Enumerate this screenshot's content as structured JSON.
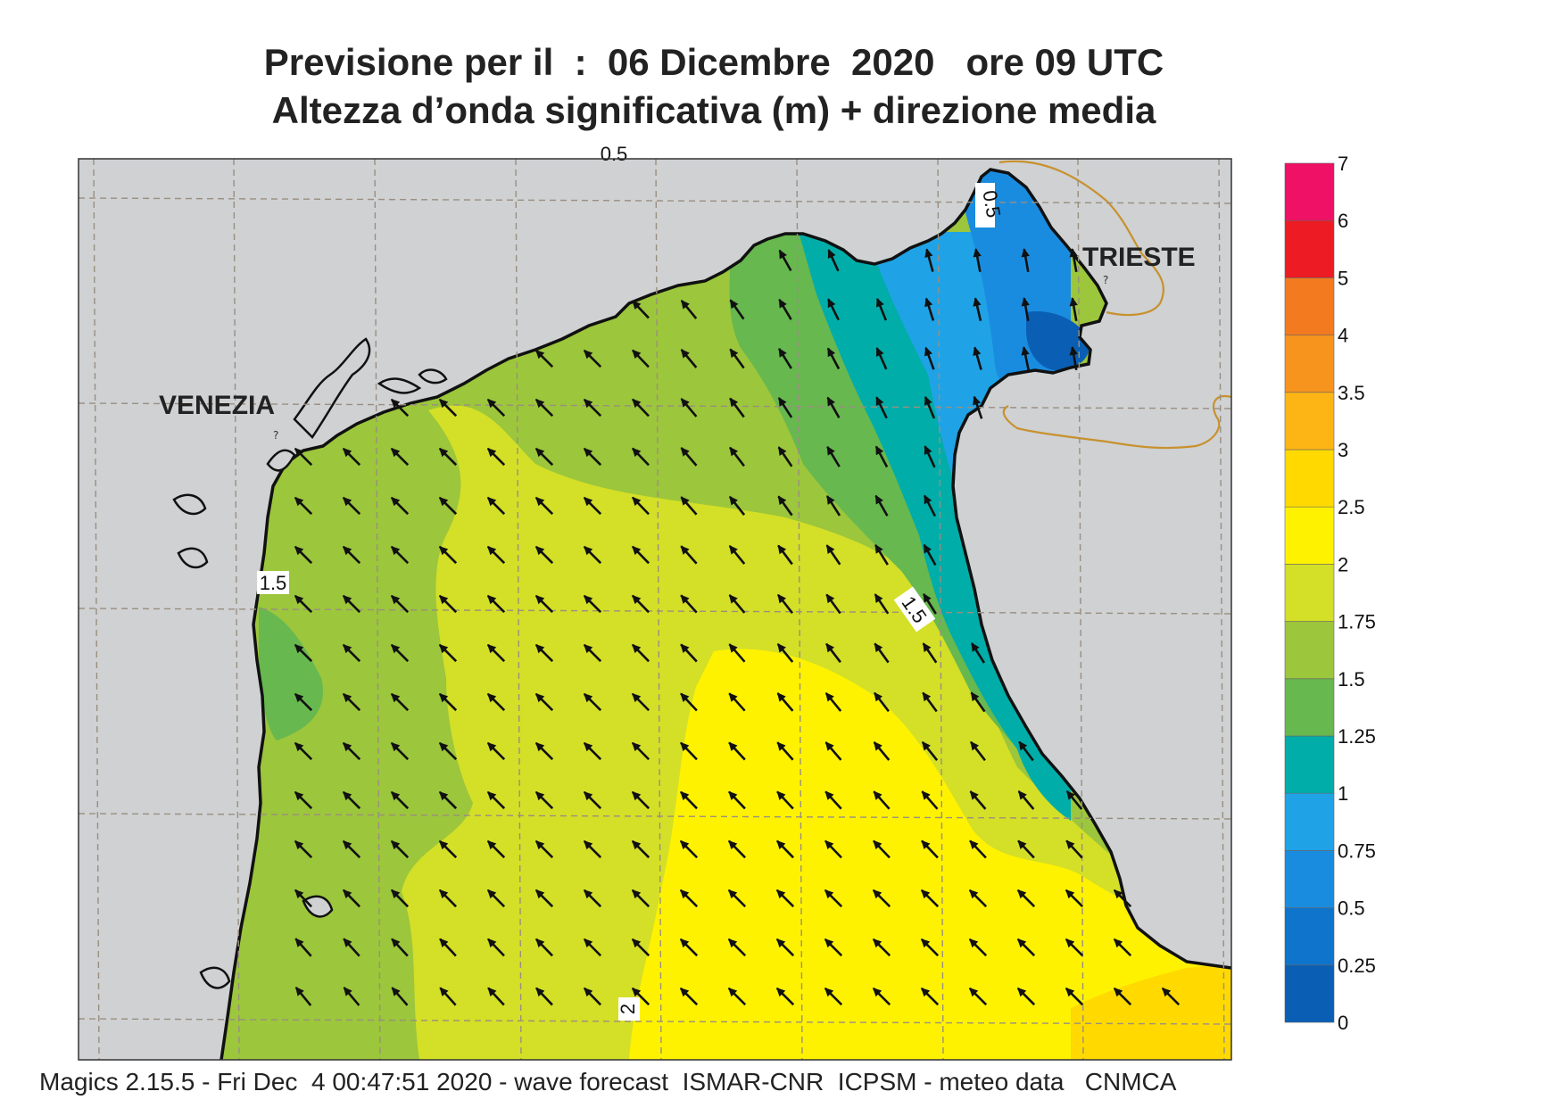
{
  "title_line1": "Previsione per il  :  06 Dicembre  2020   ore 09 UTC",
  "title_line2": "Altezza d’onda significativa (m) + direzione media",
  "footer": "Magics 2.15.5 - Fri Dec  4 00:47:51 2020 - wave forecast  ISMAR-CNR  ICPSM - meteo data   CNMCA",
  "places": {
    "venezia": "VENEZIA",
    "trieste": "TRIESTE"
  },
  "contour_labels": {
    "top": "0.5",
    "trieste_gulf": "0.5",
    "west_coast": "1.5",
    "mid": "1.5",
    "bottom": "2"
  },
  "colorbar": {
    "labels": [
      "0",
      "0.25",
      "0.5",
      "0.75",
      "1",
      "1.25",
      "1.5",
      "1.75",
      "2",
      "2.5",
      "3",
      "3.5",
      "4",
      "5",
      "6",
      "7"
    ],
    "colors": [
      "#0a5fb4",
      "#0f74cc",
      "#1a8ce0",
      "#1fa3e6",
      "#00ada9",
      "#67b84f",
      "#9cc63b",
      "#d4df27",
      "#fff200",
      "#ffd900",
      "#fdb515",
      "#f7941d",
      "#f47a20",
      "#ed1c24",
      "#ee1166"
    ]
  },
  "colors": {
    "land": "#cfd1d3",
    "coast": "#111111",
    "border": "#c8912d",
    "grid": "#9a8f80"
  },
  "wave_field": {
    "mean_direction": "NW",
    "range_m": [
      0.25,
      3
    ]
  }
}
